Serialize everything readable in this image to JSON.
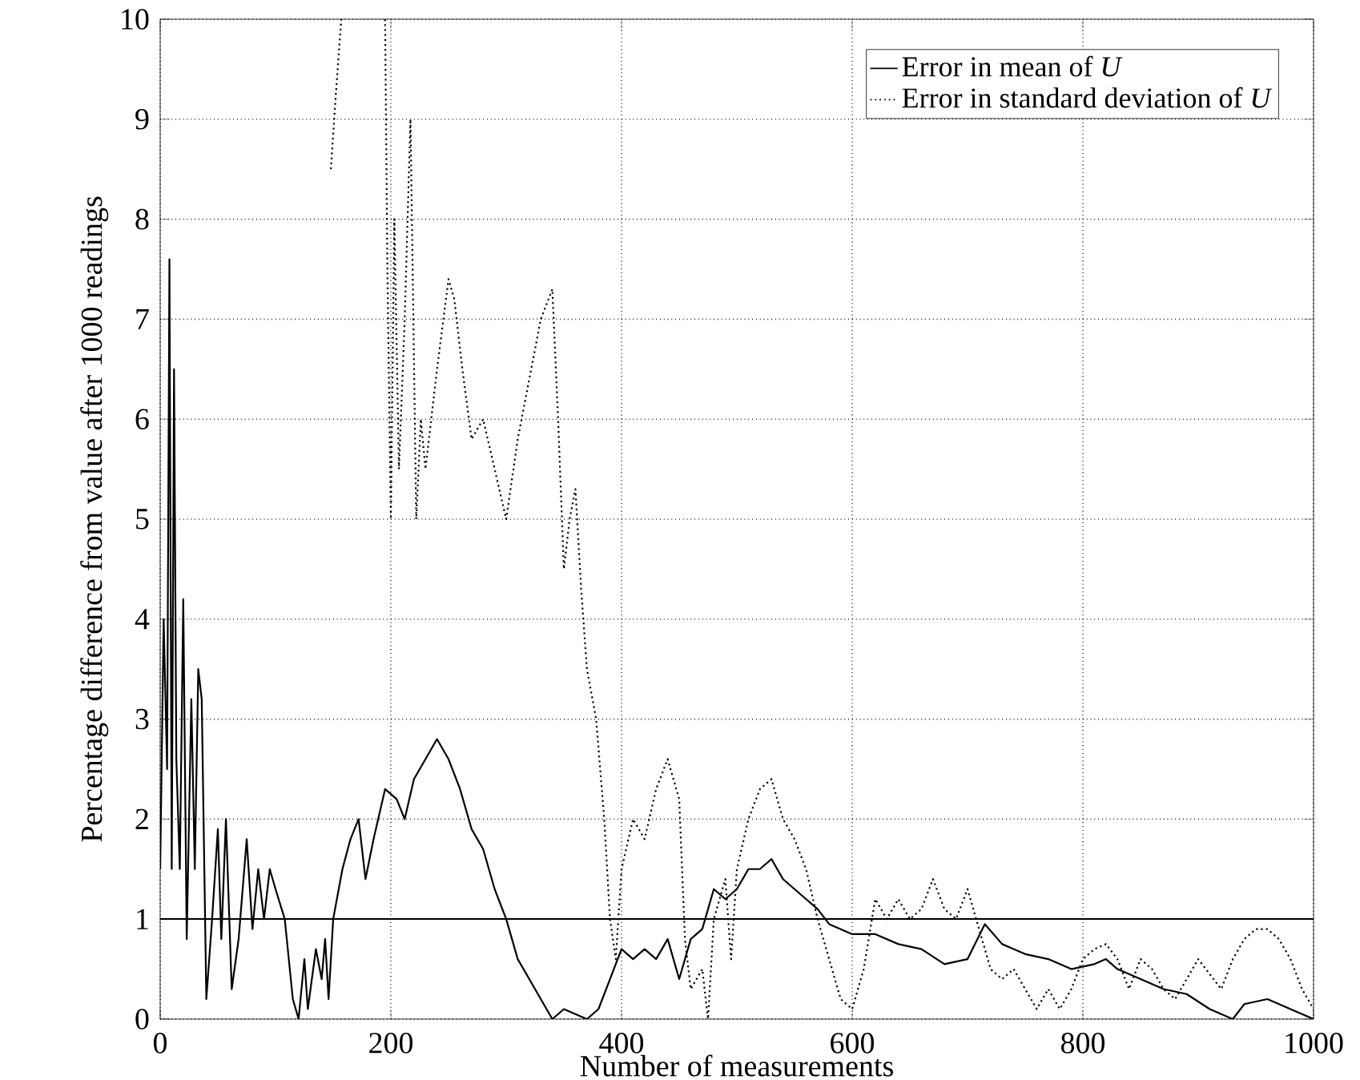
{
  "chart_data": {
    "type": "line",
    "xlabel": "Number of measurements",
    "ylabel": "Percentage difference from value after 1000 readings",
    "xlim": [
      0,
      1000
    ],
    "ylim": [
      0,
      10
    ],
    "xticks": [
      0,
      200,
      400,
      600,
      800,
      1000
    ],
    "yticks": [
      0,
      1,
      2,
      3,
      4,
      5,
      6,
      7,
      8,
      9,
      10
    ],
    "grid": true,
    "legend": "top right",
    "ref_lines": [
      {
        "axis": "y",
        "value": 1,
        "color": "#000000",
        "line_style": "solid"
      }
    ],
    "series": [
      {
        "name": "Error in mean of *U*",
        "color": "#000000",
        "line_style": "solid",
        "x": [
          0,
          3,
          6,
          8,
          10,
          12,
          14,
          17,
          20,
          23,
          27,
          30,
          33,
          36,
          40,
          45,
          50,
          53,
          57,
          62,
          68,
          75,
          80,
          85,
          90,
          95,
          100,
          108,
          115,
          120,
          125,
          128,
          135,
          140,
          143,
          146,
          150,
          158,
          165,
          172,
          178,
          185,
          195,
          205,
          212,
          220,
          230,
          240,
          250,
          260,
          270,
          280,
          290,
          300,
          310,
          320,
          330,
          340,
          350,
          360,
          370,
          380,
          390,
          400,
          410,
          420,
          430,
          440,
          450,
          460,
          470,
          480,
          490,
          500,
          510,
          520,
          530,
          540,
          550,
          560,
          570,
          580,
          590,
          600,
          620,
          640,
          660,
          680,
          700,
          715,
          730,
          750,
          770,
          790,
          810,
          820,
          830,
          850,
          870,
          890,
          910,
          930,
          940,
          960,
          980,
          1000
        ],
        "values": [
          1.5,
          4,
          2.5,
          7.6,
          1.5,
          6.5,
          2.6,
          1.5,
          4.2,
          0.8,
          3.2,
          1.5,
          3.5,
          3.2,
          0.2,
          1.0,
          1.9,
          0.8,
          2.0,
          0.3,
          0.8,
          1.8,
          0.9,
          1.5,
          1.0,
          1.5,
          1.3,
          1.0,
          0.2,
          0,
          0.6,
          0.1,
          0.7,
          0.4,
          0.8,
          0.2,
          1.0,
          1.5,
          1.8,
          2.0,
          1.4,
          1.8,
          2.3,
          2.2,
          2.0,
          2.4,
          2.6,
          2.8,
          2.6,
          2.3,
          1.9,
          1.7,
          1.3,
          1.0,
          0.6,
          0.4,
          0.2,
          0,
          0.1,
          0.05,
          0,
          0.1,
          0.4,
          0.7,
          0.6,
          0.7,
          0.6,
          0.8,
          0.4,
          0.8,
          0.9,
          1.3,
          1.2,
          1.3,
          1.5,
          1.5,
          1.6,
          1.4,
          1.3,
          1.2,
          1.1,
          0.95,
          0.9,
          0.85,
          0.85,
          0.75,
          0.7,
          0.55,
          0.6,
          0.95,
          0.75,
          0.65,
          0.6,
          0.5,
          0.55,
          0.6,
          0.5,
          0.4,
          0.3,
          0.25,
          0.1,
          0,
          0.15,
          0.2,
          0.1,
          0
        ]
      },
      {
        "name": "Error in standard deviation of *U*",
        "color": "#000000",
        "line_style": "dotted",
        "x": [
          148,
          152,
          157,
          176,
          195,
          197,
          200,
          203,
          207,
          212,
          217,
          222,
          226,
          230,
          240,
          250,
          255,
          262,
          270,
          280,
          290,
          300,
          310,
          320,
          330,
          340,
          345,
          350,
          355,
          360,
          365,
          370,
          378,
          385,
          390,
          395,
          400,
          410,
          420,
          430,
          440,
          450,
          455,
          460,
          470,
          475,
          480,
          490,
          495,
          500,
          510,
          520,
          530,
          540,
          550,
          560,
          570,
          580,
          590,
          600,
          610,
          620,
          630,
          640,
          650,
          660,
          670,
          680,
          690,
          700,
          710,
          720,
          730,
          740,
          750,
          760,
          770,
          780,
          790,
          800,
          810,
          820,
          830,
          840,
          850,
          860,
          870,
          880,
          890,
          900,
          910,
          920,
          930,
          940,
          950,
          960,
          970,
          980,
          990,
          1000
        ],
        "values": [
          8.5,
          9.2,
          10,
          null,
          10,
          7.5,
          5.0,
          8.0,
          5.5,
          7.0,
          9.0,
          5.0,
          6.0,
          5.5,
          6.5,
          7.4,
          7.2,
          6.5,
          5.8,
          6.0,
          5.5,
          5.0,
          5.8,
          6.4,
          7.0,
          7.3,
          6.0,
          4.5,
          5.0,
          5.3,
          4.3,
          3.5,
          3.0,
          2.0,
          1.0,
          0.6,
          1.5,
          2.0,
          1.8,
          2.3,
          2.6,
          2.2,
          0.8,
          0.3,
          0.5,
          0,
          1.0,
          1.4,
          0.6,
          1.5,
          2.0,
          2.3,
          2.4,
          2.0,
          1.8,
          1.5,
          1.0,
          0.6,
          0.2,
          0.1,
          0.5,
          1.2,
          1.0,
          1.2,
          1.0,
          1.1,
          1.4,
          1.1,
          1.0,
          1.3,
          0.9,
          0.5,
          0.4,
          0.5,
          0.3,
          0.1,
          0.3,
          0.1,
          0.3,
          0.6,
          0.7,
          0.75,
          0.6,
          0.3,
          0.6,
          0.5,
          0.3,
          0.2,
          0.4,
          0.6,
          0.45,
          0.3,
          0.6,
          0.8,
          0.9,
          0.9,
          0.8,
          0.6,
          0.3,
          0.1
        ]
      }
    ]
  }
}
